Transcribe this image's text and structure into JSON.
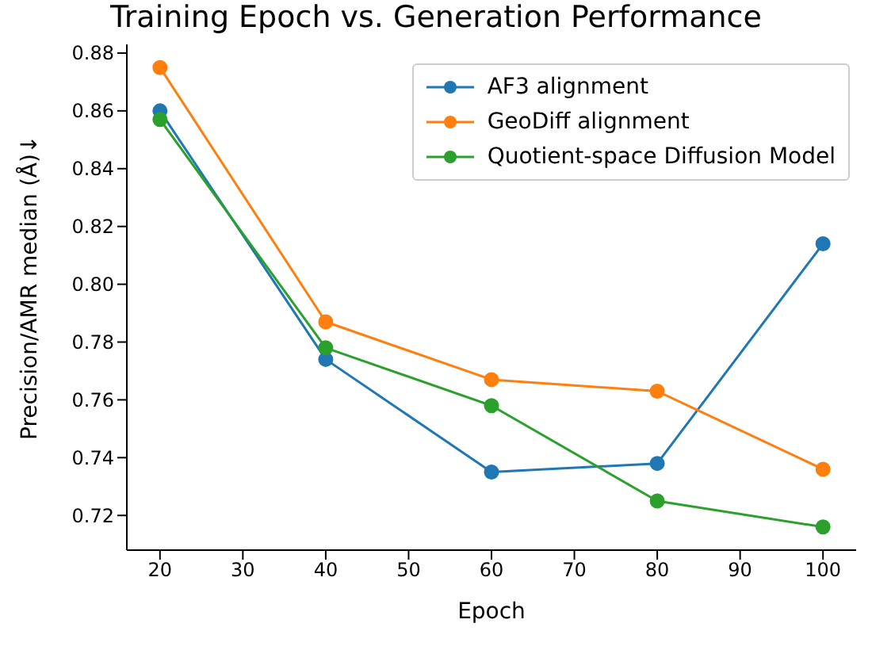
{
  "chart_data": {
    "type": "line",
    "title": "Training Epoch vs. Generation Performance",
    "xlabel": "Epoch",
    "ylabel": "Precision/AMR median (Å)↓",
    "x": [
      20,
      40,
      60,
      80,
      100
    ],
    "series": [
      {
        "name": "AF3 alignment",
        "color": "#1f77b4",
        "values": [
          0.86,
          0.774,
          0.735,
          0.738,
          0.814
        ]
      },
      {
        "name": "GeoDiff alignment",
        "color": "#ff7f0e",
        "values": [
          0.875,
          0.787,
          0.767,
          0.763,
          0.736
        ]
      },
      {
        "name": "Quotient-space Diffusion Model",
        "color": "#2ca02c",
        "values": [
          0.857,
          0.778,
          0.758,
          0.725,
          0.716
        ]
      }
    ],
    "xlim": [
      16,
      104
    ],
    "xticks": [
      20,
      30,
      40,
      50,
      60,
      70,
      80,
      90,
      100
    ],
    "ylim": [
      0.708,
      0.883
    ],
    "yticks": [
      0.72,
      0.74,
      0.76,
      0.78,
      {
        "value": 0.8,
        "label": "0.80"
      },
      0.82,
      0.84,
      0.86,
      0.88
    ],
    "grid": false,
    "legend": "top right",
    "marker": "circle",
    "line_style": "solid"
  }
}
